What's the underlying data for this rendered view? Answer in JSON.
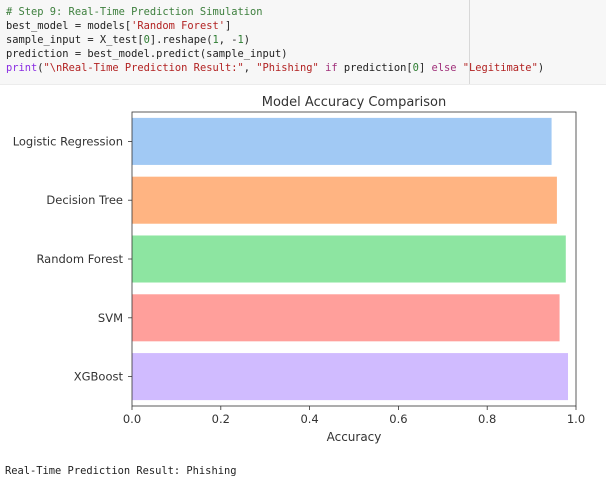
{
  "code_cell": {
    "line1_comment": "# Step 9: Real-Time Prediction Simulation",
    "line2": {
      "a": "best_model = models[",
      "s": "'Random Forest'",
      "b": "]"
    },
    "line3": {
      "a": "sample_input = X_test[",
      "n1": "0",
      "b": "].reshape(",
      "n2": "1",
      "c": ", -",
      "n3": "1",
      "d": ")"
    },
    "line4": "prediction = best_model.predict(sample_input)",
    "line5": {
      "fn": "print",
      "p1": "(",
      "s1": "\"\\nReal-Time Prediction Result:\"",
      "p2": ", ",
      "s2": "\"Phishing\"",
      "k1": " if ",
      "p3": "prediction[",
      "n1": "0",
      "p4": "]",
      "k2": " else ",
      "s3": "\"Legitimate\"",
      "p5": ")"
    }
  },
  "chart_data": {
    "type": "bar",
    "orientation": "horizontal",
    "title": "Model Accuracy Comparison",
    "xlabel": "Accuracy",
    "ylabel": "",
    "categories": [
      "Logistic Regression",
      "Decision Tree",
      "Random Forest",
      "SVM",
      "XGBoost"
    ],
    "values": [
      0.945,
      0.957,
      0.977,
      0.963,
      0.982
    ],
    "colors": [
      "#a1c9f4",
      "#ffb482",
      "#8de5a1",
      "#ff9f9b",
      "#d0bbff"
    ],
    "xlim": [
      0,
      1
    ],
    "xticks": [
      "0.0",
      "0.2",
      "0.4",
      "0.6",
      "0.8",
      "1.0"
    ],
    "grid": false,
    "legend": "none"
  },
  "output": {
    "text": "Real-Time Prediction Result: Phishing"
  }
}
